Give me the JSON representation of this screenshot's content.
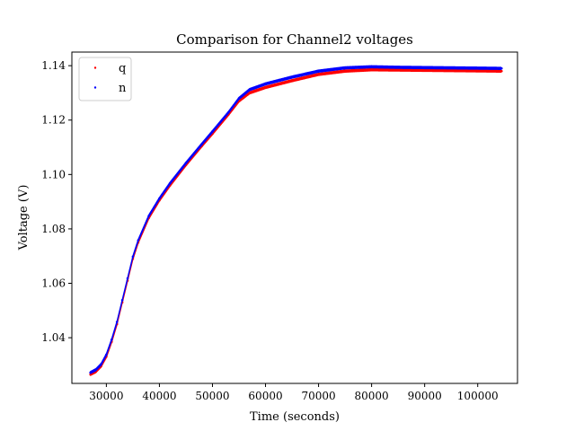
{
  "chart_data": {
    "type": "scatter",
    "title": "Comparison for Channel2 voltages",
    "xlabel": "Time (seconds)",
    "ylabel": "Voltage (V)",
    "xlim": [
      23500,
      107500
    ],
    "ylim": [
      1.0232,
      1.145
    ],
    "x_ticks": [
      30000,
      40000,
      50000,
      60000,
      70000,
      80000,
      90000,
      100000
    ],
    "x_tick_labels": [
      "30000",
      "40000",
      "50000",
      "60000",
      "70000",
      "80000",
      "90000",
      "100000"
    ],
    "y_ticks": [
      1.04,
      1.06,
      1.08,
      1.1,
      1.12,
      1.14
    ],
    "y_tick_labels": [
      "1.04",
      "1.06",
      "1.08",
      "1.10",
      "1.12",
      "1.14"
    ],
    "grid": false,
    "legend": {
      "placement": "top-left"
    },
    "series": [
      {
        "name": "q",
        "color": "#ff0000",
        "x": [
          27000,
          28000,
          29000,
          30000,
          31000,
          32000,
          33000,
          34000,
          35000,
          36000,
          38000,
          40000,
          42000,
          45000,
          48000,
          50000,
          53000,
          55000,
          57000,
          60000,
          65000,
          70000,
          75000,
          80000,
          85000,
          90000,
          95000,
          100000,
          104500
        ],
        "y": [
          1.0265,
          1.0275,
          1.0295,
          1.033,
          1.0385,
          1.045,
          1.053,
          1.061,
          1.069,
          1.075,
          1.084,
          1.0905,
          1.096,
          1.1035,
          1.1105,
          1.115,
          1.122,
          1.127,
          1.13,
          1.132,
          1.1345,
          1.1368,
          1.138,
          1.1385,
          1.1384,
          1.1383,
          1.1382,
          1.1381,
          1.138
        ]
      },
      {
        "name": "n",
        "color": "#0000ff",
        "x": [
          27000,
          28000,
          29000,
          30000,
          31000,
          32000,
          33000,
          34000,
          35000,
          36000,
          38000,
          40000,
          42000,
          45000,
          48000,
          50000,
          53000,
          55000,
          57000,
          60000,
          65000,
          70000,
          75000,
          80000,
          85000,
          90000,
          95000,
          100000,
          104500
        ],
        "y": [
          1.0272,
          1.0282,
          1.0302,
          1.0338,
          1.0393,
          1.0458,
          1.0538,
          1.0618,
          1.0698,
          1.0758,
          1.0848,
          1.0912,
          1.0968,
          1.1042,
          1.1112,
          1.1158,
          1.1228,
          1.128,
          1.1312,
          1.1333,
          1.1358,
          1.138,
          1.1392,
          1.1396,
          1.1394,
          1.1393,
          1.1392,
          1.1391,
          1.139
        ]
      }
    ]
  }
}
